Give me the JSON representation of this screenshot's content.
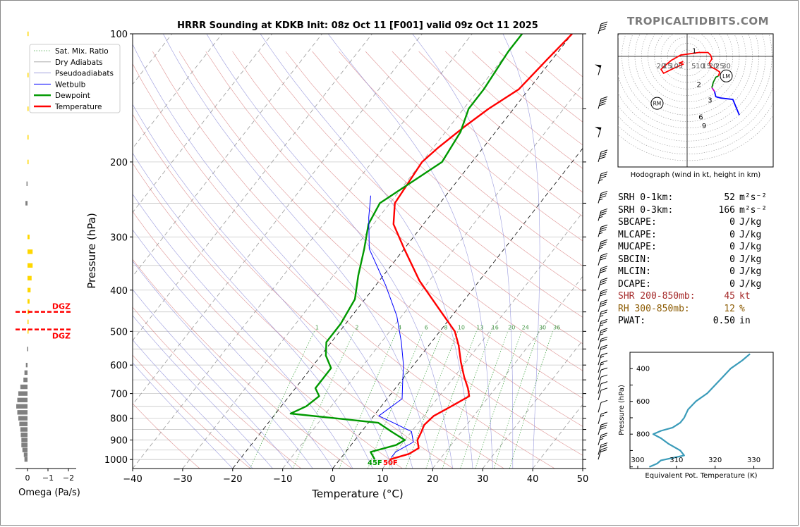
{
  "title": "HRRR Sounding at KDKB Init: 08z Oct 11 [F001] valid 09z Oct 11 2025",
  "brand": "TROPICALTIDBITS.COM",
  "skewt": {
    "xlabel": "Temperature (°C)",
    "ylabel": "Pressure (hPa)",
    "temp_ticks": [
      "−40",
      "−30",
      "−20",
      "−10",
      "0",
      "10",
      "20",
      "30",
      "40",
      "50"
    ],
    "pressure_ticks": [
      "100",
      "200",
      "300",
      "400",
      "500",
      "600",
      "700",
      "800",
      "900",
      "1000"
    ],
    "legend": [
      "Sat. Mix. Ratio",
      "Dry Adiabats",
      "Pseudoadiabats",
      "Wetbulb",
      "Dewpoint",
      "Temperature"
    ],
    "mixing_ratio_labels": [
      "1",
      "2",
      "4",
      "6",
      "8",
      "10",
      "13",
      "16",
      "20",
      "24",
      "30",
      "36"
    ],
    "surface_dewpoint_label": "45F",
    "surface_temp_label": "50F"
  },
  "chart_data": [
    {
      "type": "line",
      "name": "skewt",
      "xlim": [
        -40,
        50
      ],
      "ylim": [
        1050,
        100
      ],
      "log_y": true,
      "series": [
        {
          "name": "Temperature",
          "color": "#ff0000",
          "points": [
            [
              10,
              1000
            ],
            [
              13,
              970
            ],
            [
              14,
              940
            ],
            [
              12.5,
              900
            ],
            [
              12,
              860
            ],
            [
              11.5,
              830
            ],
            [
              12,
              790
            ],
            [
              14,
              750
            ],
            [
              16,
              710
            ],
            [
              14.5,
              680
            ],
            [
              12,
              640
            ],
            [
              9,
              590
            ],
            [
              6,
              540
            ],
            [
              3,
              500
            ],
            [
              -4,
              440
            ],
            [
              -12,
              380
            ],
            [
              -20,
              320
            ],
            [
              -26,
              280
            ],
            [
              -29,
              250
            ],
            [
              -30,
              200
            ],
            [
              -29,
              185
            ],
            [
              -27,
              165
            ],
            [
              -25,
              150
            ],
            [
              -22,
              135
            ],
            [
              -21,
              115
            ],
            [
              -20,
              100
            ]
          ]
        },
        {
          "name": "Dewpoint",
          "color": "#009900",
          "points": [
            [
              7,
              1000
            ],
            [
              5,
              960
            ],
            [
              9,
              925
            ],
            [
              10,
              900
            ],
            [
              6,
              860
            ],
            [
              2,
              820
            ],
            [
              -17,
              780
            ],
            [
              -15,
              750
            ],
            [
              -14,
              710
            ],
            [
              -16,
              680
            ],
            [
              -16,
              640
            ],
            [
              -16,
              610
            ],
            [
              -19,
              570
            ],
            [
              -21,
              530
            ],
            [
              -21,
              480
            ],
            [
              -22,
              420
            ],
            [
              -25,
              370
            ],
            [
              -28,
              320
            ],
            [
              -31,
              280
            ],
            [
              -32,
              250
            ],
            [
              -26,
              200
            ],
            [
              -27,
              170
            ],
            [
              -29,
              150
            ],
            [
              -29,
              135
            ],
            [
              -30,
              110
            ],
            [
              -30,
              100
            ]
          ]
        },
        {
          "name": "Wetbulb",
          "color": "#0000ff",
          "points": [
            [
              10,
              990
            ],
            [
              10,
              960
            ],
            [
              12,
              910
            ],
            [
              10,
              860
            ],
            [
              5,
              820
            ],
            [
              1,
              790
            ],
            [
              3,
              720
            ],
            [
              1,
              670
            ],
            [
              -2,
              600
            ],
            [
              -6,
              530
            ],
            [
              -11,
              460
            ],
            [
              -18,
              390
            ],
            [
              -27,
              320
            ],
            [
              -32,
              270
            ],
            [
              -35,
              240
            ]
          ]
        }
      ]
    },
    {
      "type": "bar",
      "name": "omega",
      "xlabel": "Omega (Pa/s)",
      "x_ticks": [
        "0",
        "−1",
        "−2"
      ],
      "xlim": [
        0.5,
        -2
      ],
      "dgz": [
        {
          "pressure": 450,
          "label": "DGZ"
        },
        {
          "pressure": 495,
          "label": "DGZ"
        }
      ],
      "levels": [
        {
          "p": 1000,
          "v": 0.15
        },
        {
          "p": 975,
          "v": 0.18
        },
        {
          "p": 950,
          "v": 0.25
        },
        {
          "p": 925,
          "v": 0.3
        },
        {
          "p": 900,
          "v": 0.3
        },
        {
          "p": 875,
          "v": 0.33
        },
        {
          "p": 850,
          "v": 0.35
        },
        {
          "p": 825,
          "v": 0.4
        },
        {
          "p": 800,
          "v": 0.45
        },
        {
          "p": 775,
          "v": 0.5
        },
        {
          "p": 750,
          "v": 0.55
        },
        {
          "p": 725,
          "v": 0.5
        },
        {
          "p": 700,
          "v": 0.45
        },
        {
          "p": 675,
          "v": 0.35
        },
        {
          "p": 650,
          "v": 0.2
        },
        {
          "p": 625,
          "v": 0.15
        },
        {
          "p": 600,
          "v": 0.08
        },
        {
          "p": 550,
          "v": 0.02
        },
        {
          "p": 500,
          "v": -0.05
        },
        {
          "p": 475,
          "v": -0.05
        },
        {
          "p": 450,
          "v": -0.08
        },
        {
          "p": 425,
          "v": -0.1
        },
        {
          "p": 400,
          "v": -0.15
        },
        {
          "p": 375,
          "v": -0.2
        },
        {
          "p": 350,
          "v": -0.25
        },
        {
          "p": 325,
          "v": -0.25
        },
        {
          "p": 300,
          "v": -0.1
        },
        {
          "p": 250,
          "v": 0.1
        },
        {
          "p": 225,
          "v": 0.05
        },
        {
          "p": 200,
          "v": -0.05
        },
        {
          "p": 175,
          "v": -0.05
        },
        {
          "p": 150,
          "v": -0.05
        },
        {
          "p": 125,
          "v": -0.05
        },
        {
          "p": 100,
          "v": -0.05
        }
      ]
    },
    {
      "type": "line",
      "name": "hodograph",
      "xlabel": "Hodograph (wind in kt, height in km)",
      "x_ticks": [
        "20",
        "15",
        "10",
        "5",
        "5",
        "10",
        "15",
        "20",
        "25",
        "30"
      ],
      "markers": [
        "RM",
        "LM"
      ],
      "height_labels": [
        "1",
        "2",
        "3",
        "6",
        "9"
      ],
      "segments": [
        {
          "color": "#0000ff",
          "points": [
            [
              40,
              -45
            ],
            [
              35,
              -33
            ],
            [
              26,
              -32
            ],
            [
              22,
              -31
            ],
            [
              21,
              -27
            ]
          ]
        },
        {
          "color": "#c000c0",
          "points": [
            [
              21,
              -27
            ],
            [
              19,
              -24
            ]
          ]
        },
        {
          "color": "#008000",
          "points": [
            [
              19,
              -24
            ],
            [
              20,
              -20
            ],
            [
              22,
              -16
            ],
            [
              24,
              -15
            ]
          ]
        },
        {
          "color": "#ff0000",
          "points": [
            [
              24,
              -15
            ],
            [
              25,
              -12
            ],
            [
              22,
              -10
            ],
            [
              18,
              -8
            ],
            [
              17,
              -5
            ],
            [
              19,
              -2
            ],
            [
              18,
              1
            ],
            [
              16,
              3
            ],
            [
              9,
              3
            ],
            [
              -5,
              1
            ],
            [
              -12,
              -3
            ],
            [
              -18,
              -8
            ],
            [
              -20,
              -10
            ],
            [
              -18,
              -13
            ],
            [
              -10,
              -9
            ],
            [
              -3,
              -6
            ],
            [
              -6,
              -5
            ],
            [
              -3,
              -4
            ]
          ]
        }
      ]
    },
    {
      "type": "line",
      "name": "theta_e",
      "xlabel": "Equivalent Pot. Temperature (K)",
      "ylabel": "Pressure (hPa)",
      "x_ticks": [
        "300",
        "310",
        "320",
        "330"
      ],
      "y_ticks": [
        "400",
        "600",
        "800"
      ],
      "xlim": [
        298,
        335
      ],
      "ylim": [
        1010,
        300
      ],
      "series": [
        {
          "name": "theta-e",
          "color": "#3a9bb9",
          "points": [
            [
              303,
              1000
            ],
            [
              305,
              980
            ],
            [
              306,
              960
            ],
            [
              312,
              930
            ],
            [
              311,
              900
            ],
            [
              308,
              860
            ],
            [
              306,
              825
            ],
            [
              304,
              800
            ],
            [
              306,
              780
            ],
            [
              309,
              760
            ],
            [
              311,
              730
            ],
            [
              312,
              700
            ],
            [
              313,
              650
            ],
            [
              315,
              600
            ],
            [
              318,
              550
            ],
            [
              320,
              500
            ],
            [
              322,
              450
            ],
            [
              324,
              400
            ],
            [
              327,
              350
            ],
            [
              329,
              310
            ]
          ]
        }
      ]
    }
  ],
  "indices": [
    {
      "label": "SRH 0-1km:",
      "value": "52",
      "unit": "m²s⁻²",
      "style": "normal"
    },
    {
      "label": "SRH 0-3km:",
      "value": "166",
      "unit": "m²s⁻²",
      "style": "normal"
    },
    {
      "label": "SBCAPE:",
      "value": "0",
      "unit": "J/kg",
      "style": "normal"
    },
    {
      "label": "MLCAPE:",
      "value": "0",
      "unit": "J/kg",
      "style": "normal"
    },
    {
      "label": "MUCAPE:",
      "value": "0",
      "unit": "J/kg",
      "style": "normal"
    },
    {
      "label": "SBCIN:",
      "value": "0",
      "unit": "J/kg",
      "style": "normal"
    },
    {
      "label": "MLCIN:",
      "value": "0",
      "unit": "J/kg",
      "style": "normal"
    },
    {
      "label": "DCAPE:",
      "value": "0",
      "unit": "J/kg",
      "style": "normal"
    },
    {
      "label": "SHR 200-850mb:",
      "value": "45",
      "unit": "kt",
      "style": "shr"
    },
    {
      "label": "RH 300-850mb:",
      "value": "12",
      "unit": "%",
      "style": "rh"
    },
    {
      "label": "PWAT:",
      "value": "0.50",
      "unit": "in",
      "style": "normal"
    }
  ],
  "wind_barbs": [
    {
      "p": 1000,
      "kt": 20
    },
    {
      "p": 975,
      "kt": 20
    },
    {
      "p": 925,
      "kt": 25
    },
    {
      "p": 875,
      "kt": 30
    },
    {
      "p": 825,
      "kt": 15
    },
    {
      "p": 775,
      "kt": 10
    },
    {
      "p": 725,
      "kt": 10
    },
    {
      "p": 700,
      "kt": 10
    },
    {
      "p": 675,
      "kt": 10
    },
    {
      "p": 650,
      "kt": 10
    },
    {
      "p": 625,
      "kt": 15
    },
    {
      "p": 600,
      "kt": 15
    },
    {
      "p": 575,
      "kt": 20
    },
    {
      "p": 550,
      "kt": 20
    },
    {
      "p": 525,
      "kt": 25
    },
    {
      "p": 500,
      "kt": 25
    },
    {
      "p": 475,
      "kt": 25
    },
    {
      "p": 450,
      "kt": 30
    },
    {
      "p": 425,
      "kt": 30
    },
    {
      "p": 400,
      "kt": 30
    },
    {
      "p": 375,
      "kt": 30
    },
    {
      "p": 350,
      "kt": 30
    },
    {
      "p": 325,
      "kt": 35
    },
    {
      "p": 300,
      "kt": 35
    },
    {
      "p": 275,
      "kt": 35
    },
    {
      "p": 250,
      "kt": 35
    },
    {
      "p": 225,
      "kt": 35
    },
    {
      "p": 200,
      "kt": 40
    },
    {
      "p": 175,
      "kt": 50
    },
    {
      "p": 150,
      "kt": 40
    },
    {
      "p": 125,
      "kt": 50
    },
    {
      "p": 100,
      "kt": 40
    }
  ]
}
